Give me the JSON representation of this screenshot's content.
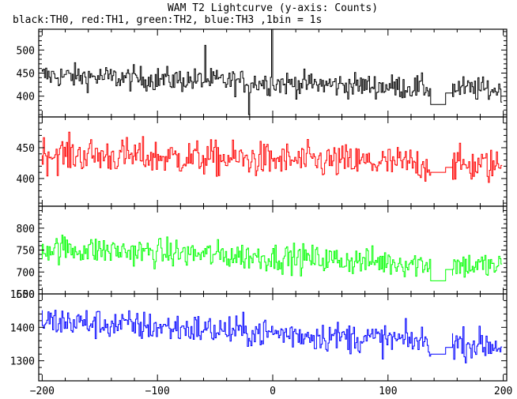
{
  "title": "WAM T2 Lightcurve (y-axis: Counts)",
  "subtitle": "black:TH0, red:TH1, green:TH2, blue:TH3 ,1bin = 1s",
  "chart_data": {
    "type": "line",
    "title": "WAM T2 Lightcurve (y-axis: Counts)",
    "subtitle": "black:TH0, red:TH1, green:TH2, blue:TH3 ,1bin = 1s",
    "xlim": [
      -203,
      203
    ],
    "x_ticks": [
      -200,
      -100,
      0,
      100,
      200
    ],
    "x_tick_labels": [
      "−200",
      "−100",
      "0",
      "100",
      "200"
    ],
    "gap": {
      "start": 137,
      "end": 150,
      "rejoin_end": 156
    },
    "panels": [
      {
        "name": "TH0",
        "color": "#000000",
        "ylim": [
          355,
          545
        ],
        "y_ticks": [
          400,
          450,
          500
        ],
        "y_tick_labels": [
          "400",
          "450",
          "500"
        ],
        "mean_start": 445,
        "mean_end": 413,
        "noise": 22,
        "gap_level": 382,
        "spikes": [
          {
            "x": 0,
            "y": 545
          },
          {
            "x": -58,
            "y": 510
          },
          {
            "x": -20,
            "y": 360
          }
        ]
      },
      {
        "name": "TH1",
        "color": "#ff0000",
        "ylim": [
          355,
          500
        ],
        "y_ticks": [
          400,
          450
        ],
        "y_tick_labels": [
          "400",
          "450"
        ],
        "mean_start": 440,
        "mean_end": 420,
        "noise": 24,
        "gap_level": 410,
        "spikes": []
      },
      {
        "name": "TH2",
        "color": "#00ff00",
        "ylim": [
          650,
          850
        ],
        "y_ticks": [
          650,
          700,
          750,
          800
        ],
        "y_tick_labels": [
          "650",
          "700",
          "750",
          "800"
        ],
        "mean_start": 755,
        "mean_end": 712,
        "noise": 27,
        "gap_level": 680,
        "spikes": []
      },
      {
        "name": "TH3",
        "color": "#0000ff",
        "ylim": [
          1240,
          1500
        ],
        "y_ticks": [
          1300,
          1400,
          1500
        ],
        "y_tick_labels": [
          "1300",
          "1400",
          "1500"
        ],
        "mean_start": 1420,
        "mean_end": 1345,
        "noise": 38,
        "gap_level": 1320,
        "spikes": []
      }
    ]
  }
}
